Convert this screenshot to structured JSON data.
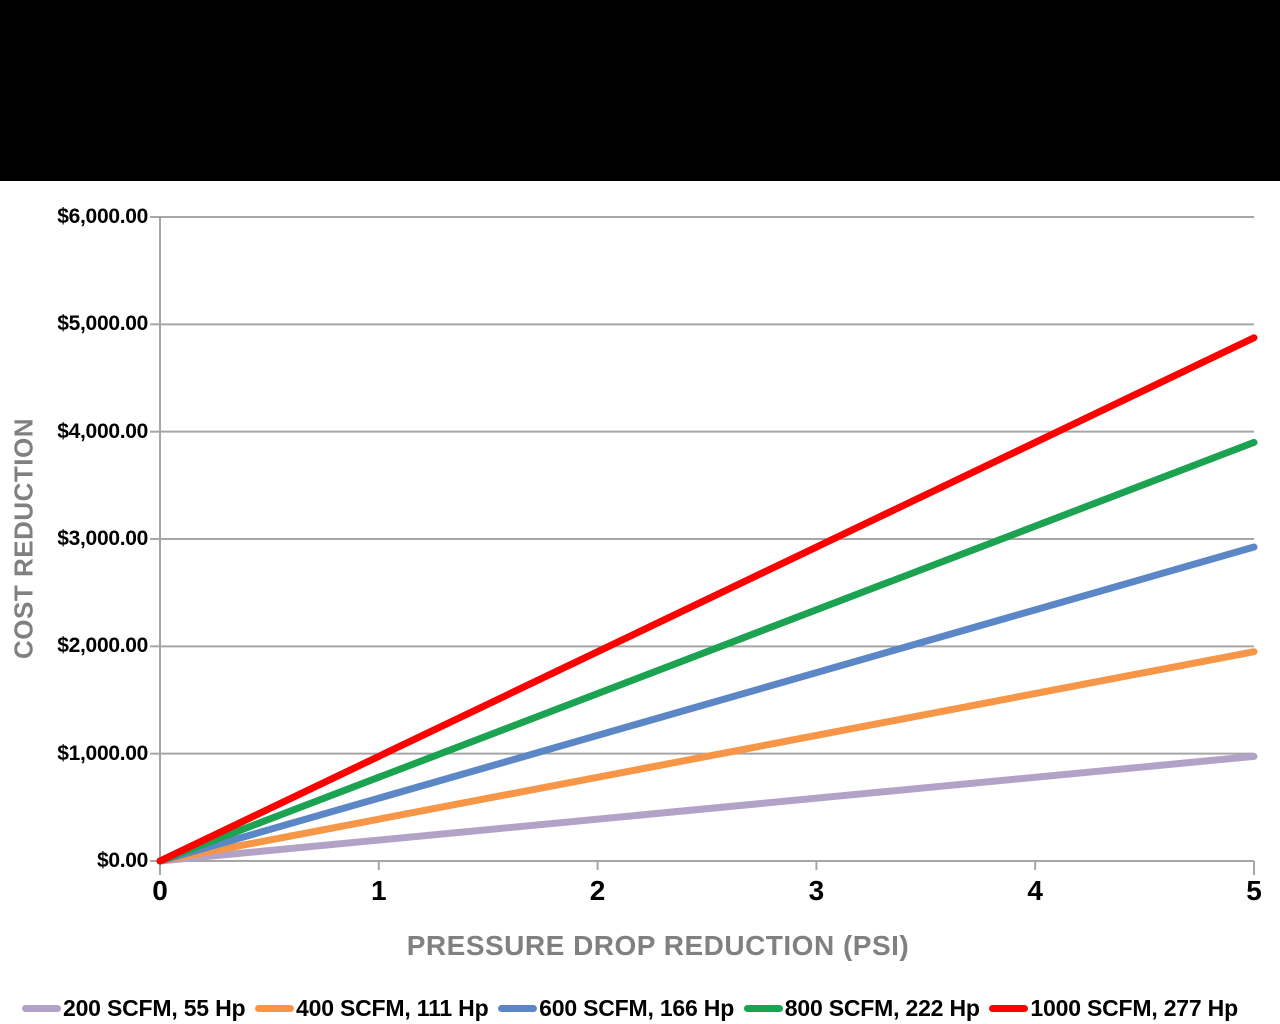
{
  "chart_data": {
    "type": "line",
    "title": "",
    "xlabel": "PRESSURE DROP REDUCTION (PSI)",
    "ylabel": "COST REDUCTION",
    "xlim": [
      0,
      5
    ],
    "ylim": [
      0,
      6000
    ],
    "grid": "horizontal",
    "legend_position": "bottom",
    "x_ticks": [
      0,
      1,
      2,
      3,
      4,
      5
    ],
    "x_tick_labels": [
      "0",
      "1",
      "2",
      "3",
      "4",
      "5"
    ],
    "y_ticks": [
      0,
      1000,
      2000,
      3000,
      4000,
      5000,
      6000
    ],
    "y_tick_labels": [
      "$0.00",
      "$1,000.00",
      "$2,000.00",
      "$3,000.00",
      "$4,000.00",
      "$5,000.00",
      "$6,000.00"
    ],
    "series": [
      {
        "name": "200 SCFM, 55 Hp",
        "color": "#b3a2c8",
        "x": [
          0,
          5
        ],
        "values": [
          0,
          975
        ]
      },
      {
        "name": "400 SCFM, 111 Hp",
        "color": "#f79646",
        "x": [
          0,
          5
        ],
        "values": [
          0,
          1950
        ]
      },
      {
        "name": "600 SCFM, 166 Hp",
        "color": "#5b87c7",
        "x": [
          0,
          5
        ],
        "values": [
          0,
          2925
        ]
      },
      {
        "name": "800 SCFM, 222 Hp",
        "color": "#1ba351",
        "x": [
          0,
          5
        ],
        "values": [
          0,
          3900
        ]
      },
      {
        "name": "1000 SCFM, 277 Hp",
        "color": "#fe0000",
        "x": [
          0,
          5
        ],
        "values": [
          0,
          4875
        ]
      }
    ]
  },
  "colors": {
    "top_band": "#000000",
    "gridline": "#a6a6a6",
    "axis": "#a6a6a6",
    "axis_title": "#808080",
    "tick_label": "#000000",
    "background": "#ffffff"
  }
}
